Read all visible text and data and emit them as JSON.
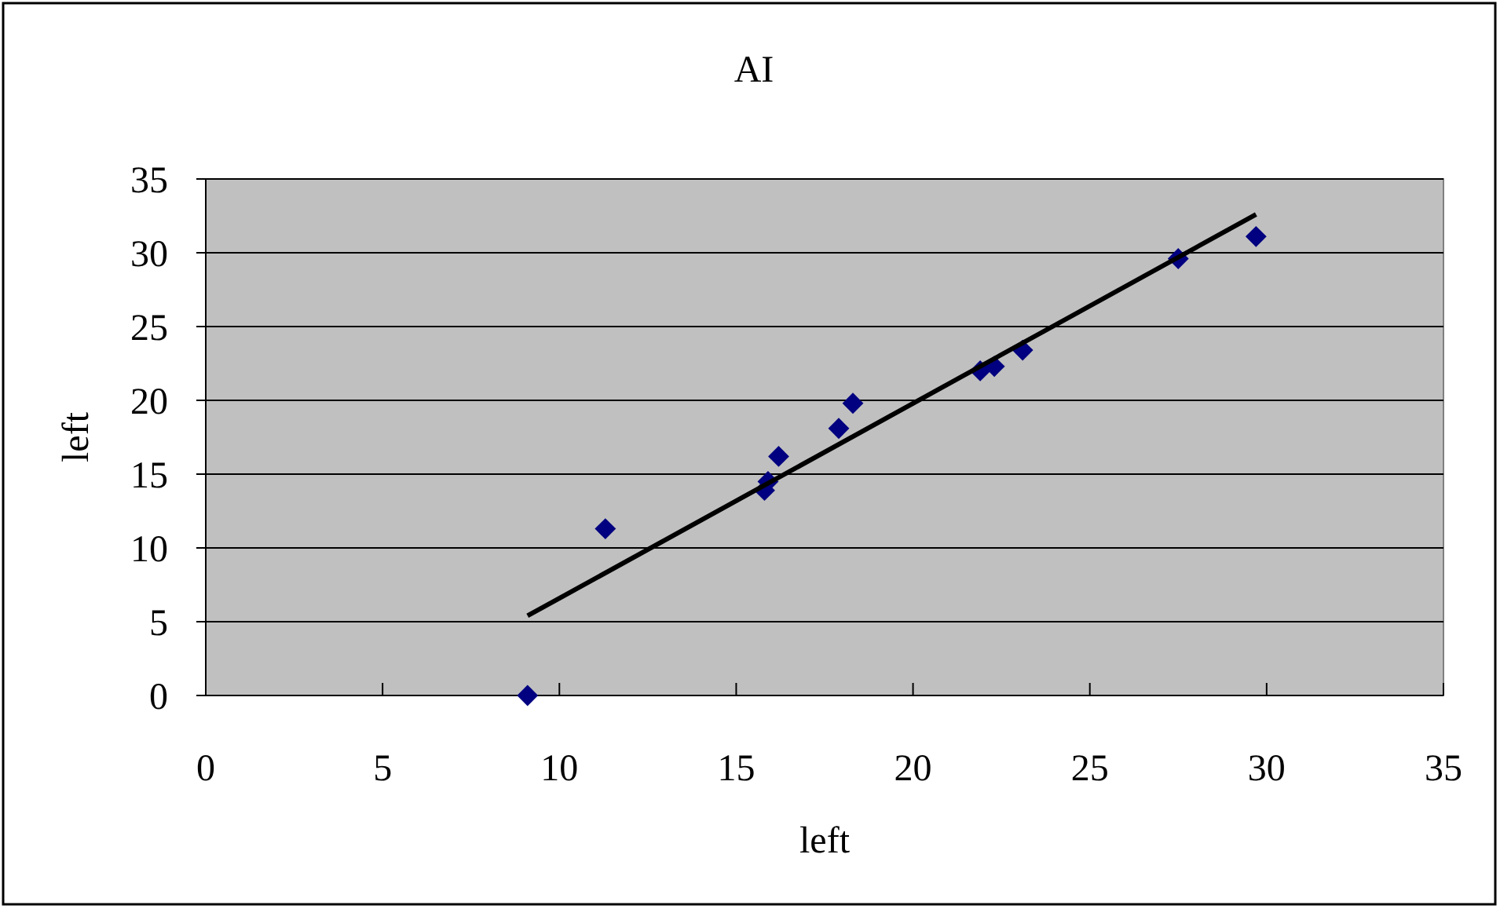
{
  "chart_data": {
    "type": "scatter",
    "title": "AI",
    "xlabel": "left",
    "ylabel": "left",
    "xlim": [
      0,
      35
    ],
    "ylim": [
      0,
      35
    ],
    "xticks": [
      0,
      5,
      10,
      15,
      20,
      25,
      30,
      35
    ],
    "yticks": [
      0,
      5,
      10,
      15,
      20,
      25,
      30,
      35
    ],
    "grid": "y",
    "marker": "diamond",
    "series": [
      {
        "color": "#000080",
        "x": [
          9.1,
          11.3,
          15.8,
          15.9,
          16.2,
          17.9,
          18.3,
          21.9,
          22.3,
          23.1,
          27.5,
          29.7
        ],
        "values": [
          0,
          11.3,
          13.9,
          14.5,
          16.2,
          18.1,
          19.8,
          22.0,
          22.3,
          23.4,
          29.6,
          31.1
        ]
      },
      {
        "type": "line",
        "color": "#000000",
        "marker": "none",
        "x": [
          9.1,
          29.7
        ],
        "values": [
          5.4,
          32.6
        ]
      }
    ]
  }
}
